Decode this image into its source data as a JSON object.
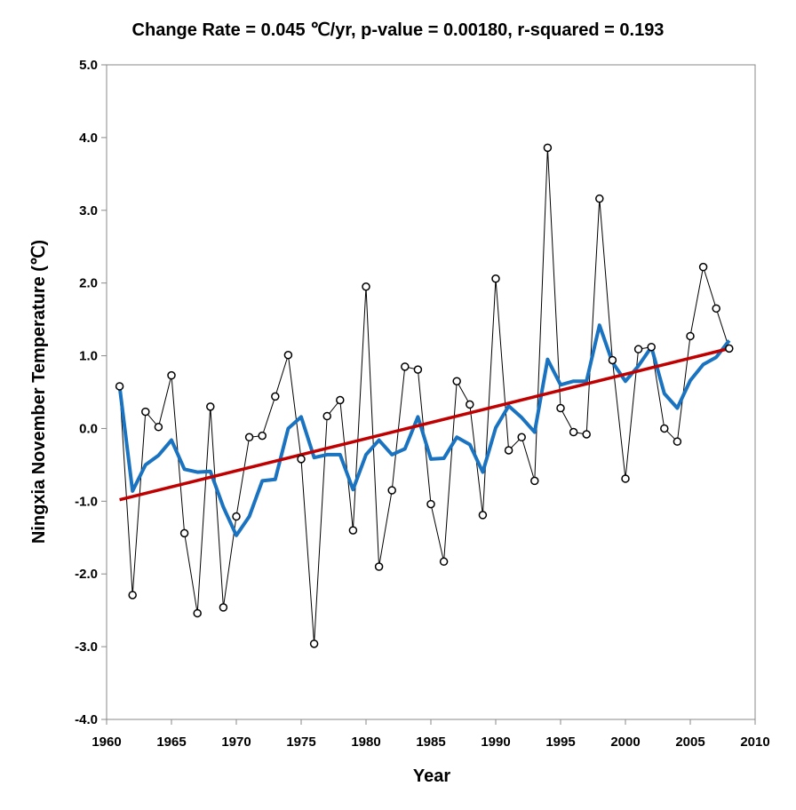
{
  "chart_data": {
    "type": "line",
    "title": "Change Rate =  0.045 ℃/yr,  p-value =  0.00180,  r-squared =  0.193",
    "xlabel": "Year",
    "ylabel": "Ningxia November Temperature (℃)",
    "xlim": [
      1960,
      2010
    ],
    "ylim": [
      -4.0,
      5.0
    ],
    "xticks": [
      "1960",
      "1965",
      "1970",
      "1975",
      "1980",
      "1985",
      "1990",
      "1995",
      "2000",
      "2005",
      "2010"
    ],
    "yticks": [
      "5.0",
      "4.0",
      "3.0",
      "2.0",
      "1.0",
      "0.0",
      "-1.0",
      "-2.0",
      "-3.0",
      "-4.0"
    ],
    "grid": false,
    "legend": "none",
    "x": [
      1961,
      1962,
      1963,
      1964,
      1965,
      1966,
      1967,
      1968,
      1969,
      1970,
      1971,
      1972,
      1973,
      1974,
      1975,
      1976,
      1977,
      1978,
      1979,
      1980,
      1981,
      1982,
      1983,
      1984,
      1985,
      1986,
      1987,
      1988,
      1989,
      1990,
      1991,
      1992,
      1993,
      1994,
      1995,
      1996,
      1997,
      1998,
      1999,
      2000,
      2001,
      2002,
      2003,
      2004,
      2005,
      2006,
      2007,
      2008
    ],
    "series": [
      {
        "kind": "observed",
        "style": "thin black line with hollow circle markers",
        "color": "#000000",
        "values": [
          0.58,
          -2.29,
          0.23,
          0.02,
          0.73,
          -1.44,
          -2.54,
          0.3,
          -2.46,
          -1.21,
          -0.12,
          -0.1,
          0.44,
          1.01,
          -0.42,
          -2.96,
          0.17,
          0.39,
          -1.4,
          1.95,
          -1.9,
          -0.85,
          0.85,
          0.81,
          -1.04,
          -1.83,
          0.65,
          0.33,
          -1.19,
          2.06,
          -0.3,
          -0.12,
          -0.72,
          3.86,
          0.28,
          -0.05,
          -0.08,
          3.16,
          0.94,
          -0.69,
          1.09,
          1.12,
          0.0,
          -0.18,
          1.27,
          2.22,
          1.65,
          1.1
        ]
      },
      {
        "kind": "smoothed",
        "style": "thick blue line",
        "color": "#1a73c0",
        "values": [
          0.58,
          -0.86,
          -0.5,
          -0.37,
          -0.16,
          -0.56,
          -0.6,
          -0.59,
          -1.08,
          -1.47,
          -1.21,
          -0.72,
          -0.7,
          0.0,
          0.16,
          -0.4,
          -0.36,
          -0.36,
          -0.84,
          -0.36,
          -0.16,
          -0.36,
          -0.28,
          0.16,
          -0.42,
          -0.41,
          -0.12,
          -0.22,
          -0.6,
          0.01,
          0.31,
          0.15,
          -0.05,
          0.95,
          0.6,
          0.65,
          0.65,
          1.42,
          0.91,
          0.65,
          0.86,
          1.12,
          0.48,
          0.28,
          0.66,
          0.88,
          0.98,
          1.21
        ]
      },
      {
        "kind": "linear trend",
        "style": "thick dark red line",
        "color": "#c00000",
        "x": [
          1961,
          2008
        ],
        "values": [
          -0.98,
          1.1
        ]
      }
    ]
  }
}
